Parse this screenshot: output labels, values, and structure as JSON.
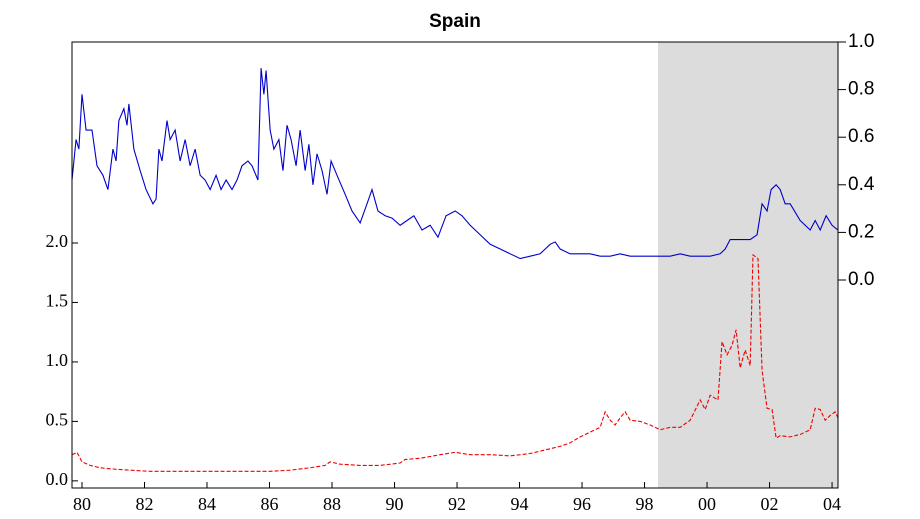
{
  "chart_data": {
    "type": "line",
    "title": "Spain",
    "xlim": [
      1979.68,
      2004.19
    ],
    "xticks": [
      {
        "value": 1980,
        "label": "80"
      },
      {
        "value": 1982,
        "label": "82"
      },
      {
        "value": 1984,
        "label": "84"
      },
      {
        "value": 1986,
        "label": "86"
      },
      {
        "value": 1988,
        "label": "88"
      },
      {
        "value": 1990,
        "label": "90"
      },
      {
        "value": 1992,
        "label": "92"
      },
      {
        "value": 1994,
        "label": "94"
      },
      {
        "value": 1996,
        "label": "96"
      },
      {
        "value": 1998,
        "label": "98"
      },
      {
        "value": 2000,
        "label": "00"
      },
      {
        "value": 2002,
        "label": "02"
      },
      {
        "value": 2004,
        "label": "04"
      }
    ],
    "ylim": [
      -0.06,
      3.69
    ],
    "yticks": [
      {
        "value": 0,
        "label": "0.0"
      },
      0.5,
      {
        "value": 1,
        "label": "1.0"
      },
      1.5,
      {
        "value": 2,
        "label": "2.0"
      }
    ],
    "y2lim": [
      -0.874,
      1.0
    ],
    "y2ticks": [
      {
        "value": 0,
        "label": "0.0"
      },
      0.2,
      0.4,
      0.6,
      0.8,
      {
        "value": 1,
        "label": "1.0"
      }
    ],
    "shaded_range": [
      1998.43,
      2004.19
    ],
    "shade_color": "#dcdcdc",
    "series": [
      {
        "color": "#0000cc",
        "axis": "y2",
        "line_style": "solid",
        "x": [
          1979.68,
          1979.81,
          1979.9,
          1980.0,
          1980.13,
          1980.32,
          1980.48,
          1980.67,
          1980.83,
          1980.99,
          1981.09,
          1981.18,
          1981.34,
          1981.44,
          1981.5,
          1981.66,
          1981.86,
          1982.05,
          1982.27,
          1982.37,
          1982.46,
          1982.56,
          1982.72,
          1982.82,
          1982.98,
          1983.14,
          1983.3,
          1983.46,
          1983.62,
          1983.78,
          1983.94,
          1984.1,
          1984.29,
          1984.45,
          1984.61,
          1984.8,
          1984.96,
          1985.12,
          1985.31,
          1985.44,
          1985.63,
          1985.73,
          1985.82,
          1985.89,
          1986.02,
          1986.14,
          1986.3,
          1986.43,
          1986.56,
          1986.69,
          1986.85,
          1986.98,
          1987.14,
          1987.26,
          1987.39,
          1987.52,
          1987.68,
          1987.84,
          1987.97,
          1988.16,
          1988.42,
          1988.64,
          1988.9,
          1989.12,
          1989.28,
          1989.47,
          1989.7,
          1989.92,
          1990.18,
          1990.4,
          1990.62,
          1990.88,
          1991.14,
          1991.39,
          1991.65,
          1991.94,
          1992.16,
          1992.42,
          1992.74,
          1993.06,
          1993.38,
          1993.7,
          1994.02,
          1994.34,
          1994.66,
          1994.98,
          1995.14,
          1995.3,
          1995.62,
          1995.94,
          1996.26,
          1996.58,
          1996.9,
          1997.22,
          1997.54,
          1997.86,
          1998.18,
          1998.5,
          1998.82,
          1999.14,
          1999.46,
          1999.78,
          2000.1,
          2000.42,
          2000.58,
          2000.74,
          2001.06,
          2001.38,
          2001.6,
          2001.76,
          2001.92,
          2002.05,
          2002.21,
          2002.34,
          2002.5,
          2002.66,
          2002.98,
          2003.3,
          2003.46,
          2003.62,
          2003.81,
          2004.0,
          2004.19
        ],
        "values": [
          0.42,
          0.59,
          0.55,
          0.78,
          0.63,
          0.63,
          0.48,
          0.44,
          0.38,
          0.55,
          0.5,
          0.67,
          0.72,
          0.65,
          0.74,
          0.55,
          0.46,
          0.38,
          0.32,
          0.34,
          0.55,
          0.5,
          0.67,
          0.59,
          0.63,
          0.5,
          0.59,
          0.48,
          0.55,
          0.44,
          0.42,
          0.38,
          0.44,
          0.38,
          0.42,
          0.38,
          0.42,
          0.48,
          0.5,
          0.48,
          0.42,
          0.89,
          0.78,
          0.88,
          0.63,
          0.55,
          0.59,
          0.46,
          0.65,
          0.59,
          0.48,
          0.63,
          0.46,
          0.57,
          0.4,
          0.53,
          0.46,
          0.36,
          0.5,
          0.44,
          0.36,
          0.29,
          0.24,
          0.32,
          0.38,
          0.29,
          0.27,
          0.26,
          0.23,
          0.25,
          0.27,
          0.21,
          0.23,
          0.18,
          0.27,
          0.29,
          0.27,
          0.23,
          0.19,
          0.15,
          0.13,
          0.11,
          0.09,
          0.1,
          0.11,
          0.15,
          0.16,
          0.13,
          0.11,
          0.11,
          0.11,
          0.1,
          0.1,
          0.11,
          0.1,
          0.1,
          0.1,
          0.1,
          0.1,
          0.11,
          0.1,
          0.1,
          0.1,
          0.11,
          0.13,
          0.17,
          0.17,
          0.17,
          0.19,
          0.32,
          0.29,
          0.38,
          0.4,
          0.38,
          0.32,
          0.32,
          0.25,
          0.21,
          0.25,
          0.21,
          0.27,
          0.23,
          0.21
        ]
      },
      {
        "color": "#ee0000",
        "axis": "y",
        "line_style": "dashed",
        "x": [
          1979.68,
          1979.84,
          1980.0,
          1980.26,
          1980.58,
          1980.96,
          1981.54,
          1982.18,
          1983.14,
          1984.1,
          1985.06,
          1986.02,
          1986.66,
          1987.3,
          1987.78,
          1987.94,
          1988.26,
          1988.9,
          1989.54,
          1990.18,
          1990.34,
          1990.82,
          1991.46,
          1991.94,
          1992.42,
          1993.06,
          1993.7,
          1994.34,
          1994.66,
          1994.98,
          1995.3,
          1995.62,
          1995.94,
          1996.26,
          1996.58,
          1996.74,
          1996.9,
          1997.06,
          1997.22,
          1997.38,
          1997.54,
          1997.86,
          1998.18,
          1998.5,
          1998.82,
          1999.14,
          1999.46,
          1999.78,
          1999.94,
          2000.1,
          2000.35,
          2000.48,
          2000.64,
          2000.8,
          2000.93,
          2001.06,
          2001.22,
          2001.38,
          2001.47,
          2001.63,
          2001.76,
          2001.92,
          2002.08,
          2002.21,
          2002.34,
          2002.66,
          2002.98,
          2003.3,
          2003.46,
          2003.62,
          2003.78,
          2003.94,
          2004.1,
          2004.19
        ],
        "values": [
          0.22,
          0.24,
          0.16,
          0.13,
          0.11,
          0.1,
          0.09,
          0.08,
          0.08,
          0.08,
          0.08,
          0.08,
          0.09,
          0.11,
          0.13,
          0.16,
          0.14,
          0.13,
          0.13,
          0.15,
          0.18,
          0.19,
          0.22,
          0.24,
          0.22,
          0.22,
          0.21,
          0.23,
          0.25,
          0.27,
          0.29,
          0.32,
          0.37,
          0.41,
          0.45,
          0.58,
          0.51,
          0.47,
          0.53,
          0.58,
          0.51,
          0.5,
          0.47,
          0.43,
          0.45,
          0.45,
          0.51,
          0.68,
          0.6,
          0.72,
          0.68,
          1.17,
          1.06,
          1.14,
          1.27,
          0.95,
          1.1,
          0.97,
          1.9,
          1.87,
          0.93,
          0.61,
          0.6,
          0.36,
          0.38,
          0.37,
          0.39,
          0.43,
          0.61,
          0.6,
          0.51,
          0.55,
          0.58,
          0.53
        ]
      }
    ]
  }
}
